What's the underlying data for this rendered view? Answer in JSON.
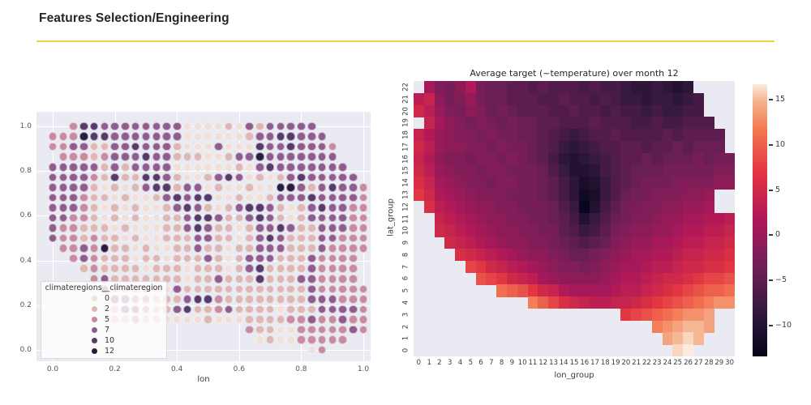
{
  "header": {
    "title": "Features Selection/Engineering",
    "underline_color": "#F2D23E"
  },
  "colors": {
    "plot_bg": "#EAEAF2",
    "grid_line": "#FFFFFF",
    "page_bg": "#FFFFFF"
  },
  "chart_data": [
    {
      "type": "scatter",
      "xlabel": "lon",
      "ylabel": "",
      "xticks": [
        "0.0",
        "0.2",
        "0.4",
        "0.6",
        "0.8",
        "1.0"
      ],
      "yticks": [
        "0.0",
        "0.2",
        "0.4",
        "0.6",
        "0.8",
        "1.0"
      ],
      "xlim": [
        0.0,
        1.0
      ],
      "ylim": [
        0.0,
        1.0
      ],
      "grid": "on",
      "legend": {
        "title": "climateregions__climateregion",
        "position": "lower-left",
        "entries": [
          {
            "label": "0",
            "level": 0,
            "color": "#F0E0DA"
          },
          {
            "label": "2",
            "level": 2,
            "color": "#DDB7B4"
          },
          {
            "label": "5",
            "level": 5,
            "color": "#C68BA0"
          },
          {
            "label": "7",
            "level": 7,
            "color": "#8F5C8E"
          },
          {
            "label": "10",
            "level": 10,
            "color": "#563A69"
          },
          {
            "label": "12",
            "level": 12,
            "color": "#2A1C3E"
          }
        ]
      },
      "palette": {
        "a": "#F0E0DA",
        "b": "#DDB7B4",
        "c": "#C68BA0",
        "d": "#8F5C8E",
        "e": "#563A69",
        "f": "#2A1C3E"
      },
      "palette_levels": {
        "a": 0,
        "b": 2,
        "c": 5,
        "d": 7,
        "e": 10,
        "f": 12
      },
      "grid_cols": 31,
      "grid_rows": 23,
      "dot_rows": [
        "..ceeddddddddaaaabadbddddd.....",
        "cccfeedddddddaaaaaabddeeddd....",
        "ccddbbddedddbaaadaaaeddedddc...",
        ".cccbcdddeddbbbaabddfddddddd...",
        "dddddbdbddddaaaaaabadeddddddd..",
        "ddddcbebbeedbaabdedababdeddddd.",
        "ddddbababdeebddabaabaaffdbdeddc",
        "dddcbbabaabdedeeaabaabdddeddddc",
        "dddcbababaabdedbabdeedbabdeddcc",
        "ddccbababaabbdeedbbdedbabddddcc",
        "dccbbbabaaabbdedbbabddedbbdddcc",
        "dccbcbbabaabbbddbbabdedbbbddccc",
        ".ccdcfbbabaabbdbbabbdddbbbdcccc",
        "..cdcbbbabbabbbdbabdddbbbdcccc.",
        "...bcbbbbabbbabbbabdebbbbdcccc.",
        "....cdbbbbbbbabbdbbbebbbddcccc.",
        ".....dbbbbbadbbbbbbbbbbbbdccccc",
        "......ddccbbbdeecbbbbbbbbdddccc",
        "......bddcbbdebbcdbbbbabbbddddc",
        "......bbcbbaaaabaaabbbbccdccdcc",
        "...................cbbaacccccdc",
        "....................abaaccccc..",
        ".........................ac...."
      ]
    },
    {
      "type": "heatmap",
      "title": "Average target (~temperature) over month 12",
      "xlabel": "lon_group",
      "ylabel": "lat_group",
      "xticks": [
        "0",
        "1",
        "2",
        "3",
        "4",
        "5",
        "6",
        "7",
        "8",
        "9",
        "10",
        "11",
        "12",
        "13",
        "14",
        "15",
        "16",
        "17",
        "18",
        "19",
        "20",
        "21",
        "22",
        "23",
        "24",
        "25",
        "26",
        "27",
        "28",
        "29",
        "30"
      ],
      "yticks_top_to_bottom": [
        "22",
        "21",
        "20",
        "19",
        "18",
        "17",
        "16",
        "15",
        "14",
        "13",
        "12",
        "11",
        "10",
        "9",
        "8",
        "7",
        "6",
        "5",
        "4",
        "3",
        "2",
        "1",
        "0"
      ],
      "colorbar": {
        "vmin": -13.4,
        "vmax": 16.7,
        "ticks": [
          15,
          10,
          5,
          0,
          -5,
          -10
        ],
        "tick_labels": [
          "15",
          "10",
          "5",
          "0",
          "−5",
          "−10"
        ],
        "colormap": "rocket",
        "stops": [
          [
            0.0,
            "#03051A"
          ],
          [
            0.17,
            "#35193E"
          ],
          [
            0.33,
            "#701F57"
          ],
          [
            0.5,
            "#AD1759"
          ],
          [
            0.67,
            "#E13342"
          ],
          [
            0.83,
            "#F37651"
          ],
          [
            0.94,
            "#F6B48F"
          ],
          [
            1.0,
            "#FAEBDD"
          ]
        ]
      },
      "values": [
        [
          null,
          1,
          -2,
          -3,
          -1,
          2,
          -3,
          -4,
          -4,
          -5,
          -5,
          -6,
          -5,
          -6,
          -6,
          -6,
          -7,
          -6,
          -7,
          -7,
          -8,
          -9,
          -9,
          -8,
          -9,
          -10,
          -9,
          null,
          null,
          null,
          null
        ],
        [
          3,
          4,
          -1,
          -3,
          -2,
          0,
          -3,
          -4,
          -4,
          -5,
          -5,
          -5,
          -6,
          -6,
          -5,
          -6,
          -6,
          -7,
          -6,
          -7,
          -8,
          -8,
          -9,
          -8,
          -8,
          -9,
          -8,
          -7,
          null,
          null,
          null
        ],
        [
          5,
          3,
          0,
          -2,
          -3,
          -1,
          -2,
          -4,
          -3,
          -4,
          -5,
          -5,
          -5,
          -6,
          -6,
          -5,
          -6,
          -6,
          -7,
          -6,
          -7,
          -7,
          -8,
          -7,
          -8,
          -8,
          -7,
          -7,
          null,
          null,
          null
        ],
        [
          null,
          4,
          1,
          -1,
          -2,
          -3,
          -2,
          -3,
          -4,
          -3,
          -4,
          -4,
          -5,
          -5,
          -6,
          -6,
          -6,
          -5,
          -6,
          -6,
          -6,
          -7,
          -7,
          -6,
          -7,
          -7,
          -6,
          -6,
          -6,
          null,
          null
        ],
        [
          4,
          2,
          0,
          -1,
          -2,
          -2,
          -3,
          -2,
          -3,
          -3,
          -4,
          -4,
          -5,
          -6,
          -7,
          -8,
          -7,
          -6,
          -6,
          -5,
          -6,
          -6,
          -6,
          -6,
          -5,
          -6,
          -5,
          -5,
          -5,
          -5,
          null
        ],
        [
          5,
          3,
          0,
          -1,
          -1,
          -2,
          -2,
          -3,
          -2,
          -3,
          -3,
          -4,
          -5,
          -6,
          -8,
          -9,
          -8,
          -7,
          -6,
          -6,
          -5,
          -5,
          -6,
          -5,
          -5,
          -4,
          -5,
          -4,
          -4,
          -4,
          null
        ],
        [
          4,
          2,
          -1,
          -2,
          -2,
          -3,
          -2,
          -2,
          -3,
          -2,
          -3,
          -4,
          -5,
          -7,
          -9,
          -10,
          -9,
          -8,
          -7,
          -6,
          -5,
          -5,
          -4,
          -5,
          -4,
          -4,
          -4,
          -3,
          -4,
          -3,
          -3
        ],
        [
          5,
          3,
          0,
          -1,
          -2,
          -2,
          -3,
          -2,
          -2,
          -3,
          -3,
          -3,
          -4,
          -6,
          -8,
          -10,
          -10,
          -9,
          -7,
          -6,
          -5,
          -4,
          -4,
          -4,
          -3,
          -3,
          -3,
          -3,
          -3,
          -2,
          -2
        ],
        [
          6,
          4,
          1,
          0,
          -1,
          -2,
          -2,
          -3,
          -2,
          -2,
          -3,
          -3,
          -4,
          -5,
          -7,
          -9,
          -11,
          -10,
          -8,
          -6,
          -5,
          -4,
          -3,
          -3,
          -3,
          -2,
          -2,
          -2,
          -2,
          -1,
          -1
        ],
        [
          7,
          5,
          2,
          1,
          0,
          -1,
          -2,
          -2,
          -2,
          -3,
          -3,
          -3,
          -4,
          -5,
          -7,
          -9,
          -12,
          -11,
          -8,
          -6,
          -4,
          -3,
          -3,
          -2,
          -2,
          -2,
          -1,
          -1,
          0,
          null,
          null
        ],
        [
          null,
          6,
          3,
          2,
          1,
          0,
          -1,
          -1,
          -2,
          -2,
          -3,
          -3,
          -3,
          -4,
          -6,
          -8,
          -13,
          -10,
          -7,
          -5,
          -3,
          -3,
          -2,
          -2,
          -1,
          -1,
          0,
          0,
          1,
          null,
          null
        ],
        [
          null,
          null,
          4,
          3,
          2,
          1,
          0,
          -1,
          -1,
          -2,
          -2,
          -3,
          -3,
          -4,
          -5,
          -7,
          -10,
          -8,
          -6,
          -4,
          -3,
          -2,
          -2,
          -1,
          0,
          0,
          1,
          1,
          2,
          2,
          3
        ],
        [
          null,
          null,
          5,
          4,
          3,
          2,
          1,
          0,
          -1,
          -1,
          -2,
          -2,
          -3,
          -3,
          -5,
          -6,
          -8,
          -7,
          -5,
          -3,
          -2,
          -1,
          -1,
          0,
          0,
          1,
          2,
          2,
          3,
          3,
          4
        ],
        [
          null,
          null,
          null,
          5,
          4,
          3,
          2,
          1,
          0,
          -1,
          -1,
          -2,
          -2,
          -3,
          -4,
          -5,
          -6,
          -5,
          -4,
          -2,
          -1,
          0,
          0,
          1,
          1,
          2,
          3,
          3,
          4,
          4,
          5
        ],
        [
          null,
          null,
          null,
          null,
          6,
          5,
          4,
          3,
          2,
          1,
          0,
          -1,
          -1,
          -2,
          -3,
          -4,
          -4,
          -3,
          -2,
          -1,
          0,
          1,
          1,
          2,
          2,
          3,
          4,
          4,
          5,
          5,
          6
        ],
        [
          null,
          null,
          null,
          null,
          null,
          8,
          7,
          5,
          4,
          3,
          2,
          1,
          0,
          -1,
          -2,
          -2,
          -3,
          -2,
          -1,
          0,
          1,
          1,
          2,
          3,
          3,
          4,
          5,
          5,
          6,
          6,
          7
        ],
        [
          null,
          null,
          null,
          null,
          null,
          null,
          9,
          8,
          7,
          5,
          4,
          3,
          1,
          0,
          -1,
          -1,
          -1,
          -1,
          0,
          1,
          2,
          2,
          3,
          4,
          5,
          5,
          6,
          7,
          8,
          8,
          9
        ],
        [
          null,
          null,
          null,
          null,
          null,
          null,
          null,
          null,
          11,
          10,
          9,
          7,
          5,
          4,
          2,
          1,
          1,
          1,
          1,
          2,
          3,
          3,
          4,
          5,
          6,
          7,
          8,
          9,
          10,
          10,
          11
        ],
        [
          null,
          null,
          null,
          null,
          null,
          null,
          null,
          null,
          null,
          null,
          null,
          12,
          10,
          8,
          6,
          5,
          4,
          3,
          3,
          4,
          4,
          5,
          6,
          7,
          8,
          9,
          10,
          11,
          12,
          13,
          13
        ],
        [
          null,
          null,
          null,
          null,
          null,
          null,
          null,
          null,
          null,
          null,
          null,
          null,
          null,
          null,
          null,
          null,
          null,
          null,
          null,
          null,
          7,
          8,
          9,
          10,
          11,
          12,
          13,
          13,
          14,
          null,
          null
        ],
        [
          null,
          null,
          null,
          null,
          null,
          null,
          null,
          null,
          null,
          null,
          null,
          null,
          null,
          null,
          null,
          null,
          null,
          null,
          null,
          null,
          null,
          null,
          null,
          12,
          13,
          14,
          15,
          15,
          14,
          null,
          null
        ],
        [
          null,
          null,
          null,
          null,
          null,
          null,
          null,
          null,
          null,
          null,
          null,
          null,
          null,
          null,
          null,
          null,
          null,
          null,
          null,
          null,
          null,
          null,
          null,
          null,
          14,
          15,
          16,
          15,
          null,
          null,
          null
        ],
        [
          null,
          null,
          null,
          null,
          null,
          null,
          null,
          null,
          null,
          null,
          null,
          null,
          null,
          null,
          null,
          null,
          null,
          null,
          null,
          null,
          null,
          null,
          null,
          null,
          null,
          16,
          17,
          null,
          null,
          null,
          null
        ]
      ]
    }
  ]
}
